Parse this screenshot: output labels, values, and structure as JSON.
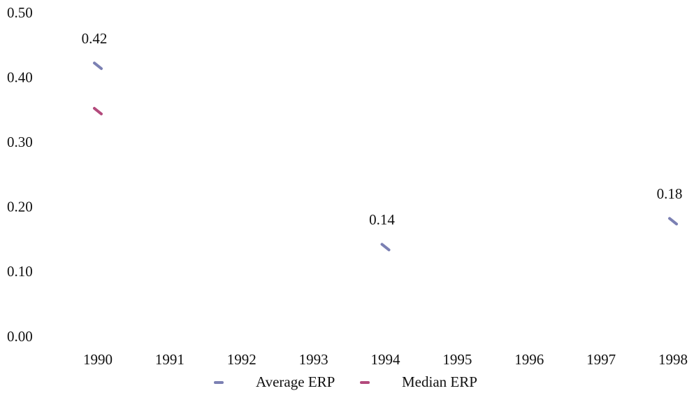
{
  "chart_data": {
    "type": "line",
    "x": [
      1990,
      1991,
      1992,
      1993,
      1994,
      1995,
      1996,
      1997,
      1998
    ],
    "series": [
      {
        "name": "Average ERP",
        "color": "#7b80b3",
        "values": [
          0.42,
          null,
          null,
          null,
          0.14,
          null,
          null,
          null,
          0.18
        ],
        "value_labels": [
          "0.42",
          null,
          null,
          null,
          "0.14",
          null,
          null,
          null,
          "0.18"
        ]
      },
      {
        "name": "Median ERP",
        "color": "#b34a7c",
        "values": [
          0.35,
          null,
          null,
          null,
          null,
          null,
          null,
          null,
          null
        ]
      }
    ],
    "ylim": [
      0,
      0.5
    ],
    "yticks": [
      {
        "value": 0,
        "label": "0.00"
      },
      {
        "value": 0.1,
        "label": "0.10"
      },
      {
        "value": 0.2,
        "label": "0.20"
      },
      {
        "value": 0.3,
        "label": "0.30"
      },
      {
        "value": 0.4,
        "label": "0.40"
      },
      {
        "value": 0.5,
        "label": "0.50"
      }
    ],
    "xlim": [
      1990,
      1998
    ],
    "legend": "bottom"
  }
}
